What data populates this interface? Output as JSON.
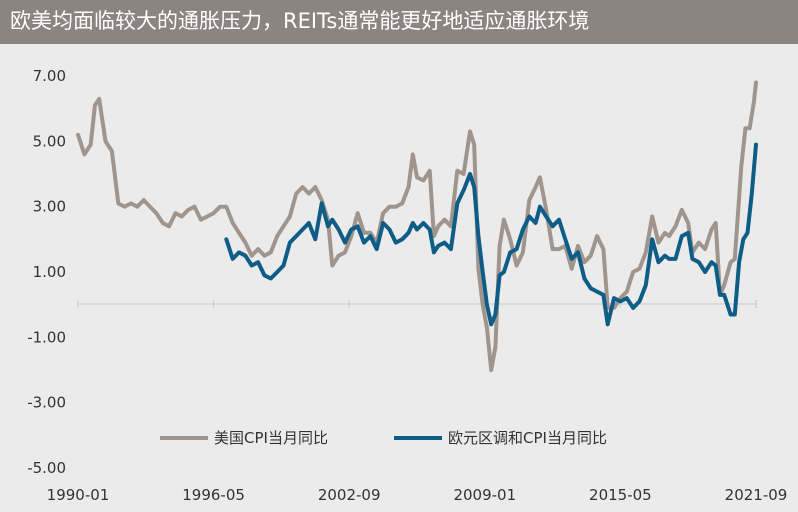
{
  "header": {
    "title": "欧美均面临较大的通胀压力，REITs通常能更好地适应通胀环境"
  },
  "chart_data": {
    "type": "line",
    "title": "欧美均面临较大的通胀压力，REITs通常能更好地适应通胀环境",
    "ylim": [
      -5,
      7
    ],
    "yticks": [
      "7.00",
      "5.00",
      "3.00",
      "1.00",
      "-1.00",
      "-3.00",
      "-5.00"
    ],
    "xticks": [
      "1990-01",
      "1996-05",
      "2002-09",
      "2009-01",
      "2015-05",
      "2021-09"
    ],
    "xlim": [
      1990.0,
      2022.0
    ],
    "grid": false,
    "legend_position": "bottom",
    "series": [
      {
        "name": "美国CPI当月同比",
        "color": "#a0958d",
        "points": [
          [
            1990.0,
            5.2
          ],
          [
            1990.3,
            4.6
          ],
          [
            1990.6,
            4.9
          ],
          [
            1990.8,
            6.1
          ],
          [
            1991.0,
            6.3
          ],
          [
            1991.3,
            5.0
          ],
          [
            1991.6,
            4.7
          ],
          [
            1991.9,
            3.1
          ],
          [
            1992.2,
            3.0
          ],
          [
            1992.5,
            3.1
          ],
          [
            1992.8,
            3.0
          ],
          [
            1993.1,
            3.2
          ],
          [
            1993.4,
            3.0
          ],
          [
            1993.7,
            2.8
          ],
          [
            1994.0,
            2.5
          ],
          [
            1994.3,
            2.4
          ],
          [
            1994.6,
            2.8
          ],
          [
            1994.9,
            2.7
          ],
          [
            1995.2,
            2.9
          ],
          [
            1995.5,
            3.0
          ],
          [
            1995.8,
            2.6
          ],
          [
            1996.1,
            2.7
          ],
          [
            1996.4,
            2.8
          ],
          [
            1996.7,
            3.0
          ],
          [
            1997.0,
            3.0
          ],
          [
            1997.3,
            2.5
          ],
          [
            1997.6,
            2.2
          ],
          [
            1997.9,
            1.9
          ],
          [
            1998.2,
            1.5
          ],
          [
            1998.5,
            1.7
          ],
          [
            1998.8,
            1.5
          ],
          [
            1999.1,
            1.6
          ],
          [
            1999.4,
            2.1
          ],
          [
            1999.7,
            2.4
          ],
          [
            2000.0,
            2.7
          ],
          [
            2000.3,
            3.4
          ],
          [
            2000.6,
            3.6
          ],
          [
            2000.9,
            3.4
          ],
          [
            2001.2,
            3.6
          ],
          [
            2001.5,
            3.2
          ],
          [
            2001.8,
            2.6
          ],
          [
            2002.0,
            1.2
          ],
          [
            2002.3,
            1.5
          ],
          [
            2002.6,
            1.6
          ],
          [
            2002.9,
            2.1
          ],
          [
            2003.2,
            2.8
          ],
          [
            2003.5,
            2.2
          ],
          [
            2003.8,
            2.2
          ],
          [
            2004.1,
            1.9
          ],
          [
            2004.4,
            2.8
          ],
          [
            2004.7,
            3.0
          ],
          [
            2005.0,
            3.0
          ],
          [
            2005.3,
            3.1
          ],
          [
            2005.6,
            3.6
          ],
          [
            2005.8,
            4.6
          ],
          [
            2006.0,
            3.9
          ],
          [
            2006.3,
            3.8
          ],
          [
            2006.6,
            4.1
          ],
          [
            2006.8,
            2.1
          ],
          [
            2007.0,
            2.4
          ],
          [
            2007.3,
            2.6
          ],
          [
            2007.6,
            2.4
          ],
          [
            2007.9,
            4.1
          ],
          [
            2008.2,
            4.0
          ],
          [
            2008.5,
            5.3
          ],
          [
            2008.7,
            4.9
          ],
          [
            2008.9,
            1.1
          ],
          [
            2009.1,
            0.0
          ],
          [
            2009.3,
            -0.7
          ],
          [
            2009.5,
            -2.0
          ],
          [
            2009.7,
            -1.3
          ],
          [
            2009.9,
            1.8
          ],
          [
            2010.1,
            2.6
          ],
          [
            2010.4,
            2.0
          ],
          [
            2010.7,
            1.2
          ],
          [
            2011.0,
            1.6
          ],
          [
            2011.3,
            3.2
          ],
          [
            2011.6,
            3.6
          ],
          [
            2011.8,
            3.9
          ],
          [
            2012.1,
            2.9
          ],
          [
            2012.4,
            1.7
          ],
          [
            2012.7,
            1.7
          ],
          [
            2013.0,
            1.8
          ],
          [
            2013.3,
            1.1
          ],
          [
            2013.6,
            1.8
          ],
          [
            2013.9,
            1.3
          ],
          [
            2014.2,
            1.5
          ],
          [
            2014.5,
            2.1
          ],
          [
            2014.8,
            1.7
          ],
          [
            2015.0,
            -0.1
          ],
          [
            2015.3,
            -0.1
          ],
          [
            2015.6,
            0.2
          ],
          [
            2015.9,
            0.4
          ],
          [
            2016.2,
            1.0
          ],
          [
            2016.5,
            1.1
          ],
          [
            2016.8,
            1.6
          ],
          [
            2017.1,
            2.7
          ],
          [
            2017.4,
            1.9
          ],
          [
            2017.7,
            2.2
          ],
          [
            2017.9,
            2.1
          ],
          [
            2018.2,
            2.4
          ],
          [
            2018.5,
            2.9
          ],
          [
            2018.8,
            2.5
          ],
          [
            2019.0,
            1.6
          ],
          [
            2019.3,
            1.9
          ],
          [
            2019.6,
            1.7
          ],
          [
            2019.9,
            2.3
          ],
          [
            2020.1,
            2.5
          ],
          [
            2020.3,
            0.3
          ],
          [
            2020.5,
            0.6
          ],
          [
            2020.8,
            1.3
          ],
          [
            2021.0,
            1.4
          ],
          [
            2021.3,
            4.2
          ],
          [
            2021.5,
            5.4
          ],
          [
            2021.7,
            5.4
          ],
          [
            2021.9,
            6.2
          ],
          [
            2022.0,
            6.8
          ]
        ]
      },
      {
        "name": "欧元区调和CPI当月同比",
        "color": "#0e5d86",
        "points": [
          [
            1997.0,
            2.0
          ],
          [
            1997.3,
            1.4
          ],
          [
            1997.6,
            1.6
          ],
          [
            1997.9,
            1.5
          ],
          [
            1998.2,
            1.2
          ],
          [
            1998.5,
            1.3
          ],
          [
            1998.8,
            0.9
          ],
          [
            1999.1,
            0.8
          ],
          [
            1999.4,
            1.0
          ],
          [
            1999.7,
            1.2
          ],
          [
            2000.0,
            1.9
          ],
          [
            2000.3,
            2.1
          ],
          [
            2000.6,
            2.3
          ],
          [
            2000.9,
            2.5
          ],
          [
            2001.2,
            2.0
          ],
          [
            2001.5,
            3.1
          ],
          [
            2001.8,
            2.4
          ],
          [
            2002.0,
            2.6
          ],
          [
            2002.3,
            2.3
          ],
          [
            2002.6,
            1.9
          ],
          [
            2002.9,
            2.3
          ],
          [
            2003.2,
            2.4
          ],
          [
            2003.5,
            1.9
          ],
          [
            2003.8,
            2.1
          ],
          [
            2004.1,
            1.7
          ],
          [
            2004.4,
            2.5
          ],
          [
            2004.7,
            2.3
          ],
          [
            2005.0,
            1.9
          ],
          [
            2005.3,
            2.0
          ],
          [
            2005.6,
            2.2
          ],
          [
            2005.8,
            2.5
          ],
          [
            2006.0,
            2.3
          ],
          [
            2006.3,
            2.5
          ],
          [
            2006.6,
            2.3
          ],
          [
            2006.8,
            1.6
          ],
          [
            2007.0,
            1.8
          ],
          [
            2007.3,
            1.9
          ],
          [
            2007.6,
            1.7
          ],
          [
            2007.9,
            3.1
          ],
          [
            2008.2,
            3.5
          ],
          [
            2008.5,
            4.0
          ],
          [
            2008.7,
            3.6
          ],
          [
            2008.9,
            2.1
          ],
          [
            2009.1,
            1.0
          ],
          [
            2009.3,
            0.0
          ],
          [
            2009.5,
            -0.6
          ],
          [
            2009.7,
            -0.3
          ],
          [
            2009.9,
            0.9
          ],
          [
            2010.1,
            1.0
          ],
          [
            2010.4,
            1.6
          ],
          [
            2010.7,
            1.7
          ],
          [
            2011.0,
            2.3
          ],
          [
            2011.3,
            2.7
          ],
          [
            2011.6,
            2.5
          ],
          [
            2011.8,
            3.0
          ],
          [
            2012.1,
            2.7
          ],
          [
            2012.4,
            2.4
          ],
          [
            2012.7,
            2.6
          ],
          [
            2013.0,
            2.0
          ],
          [
            2013.3,
            1.4
          ],
          [
            2013.6,
            1.6
          ],
          [
            2013.9,
            0.8
          ],
          [
            2014.2,
            0.5
          ],
          [
            2014.5,
            0.4
          ],
          [
            2014.8,
            0.3
          ],
          [
            2015.0,
            -0.6
          ],
          [
            2015.3,
            0.2
          ],
          [
            2015.6,
            0.1
          ],
          [
            2015.9,
            0.2
          ],
          [
            2016.2,
            -0.1
          ],
          [
            2016.5,
            0.1
          ],
          [
            2016.8,
            0.6
          ],
          [
            2017.1,
            2.0
          ],
          [
            2017.4,
            1.3
          ],
          [
            2017.7,
            1.5
          ],
          [
            2017.9,
            1.4
          ],
          [
            2018.2,
            1.4
          ],
          [
            2018.5,
            2.1
          ],
          [
            2018.8,
            2.2
          ],
          [
            2019.0,
            1.4
          ],
          [
            2019.3,
            1.3
          ],
          [
            2019.6,
            1.0
          ],
          [
            2019.9,
            1.3
          ],
          [
            2020.1,
            1.2
          ],
          [
            2020.3,
            0.3
          ],
          [
            2020.5,
            0.3
          ],
          [
            2020.8,
            -0.3
          ],
          [
            2021.0,
            -0.3
          ],
          [
            2021.2,
            1.3
          ],
          [
            2021.4,
            2.0
          ],
          [
            2021.6,
            2.2
          ],
          [
            2021.8,
            3.4
          ],
          [
            2022.0,
            4.9
          ]
        ]
      }
    ]
  }
}
